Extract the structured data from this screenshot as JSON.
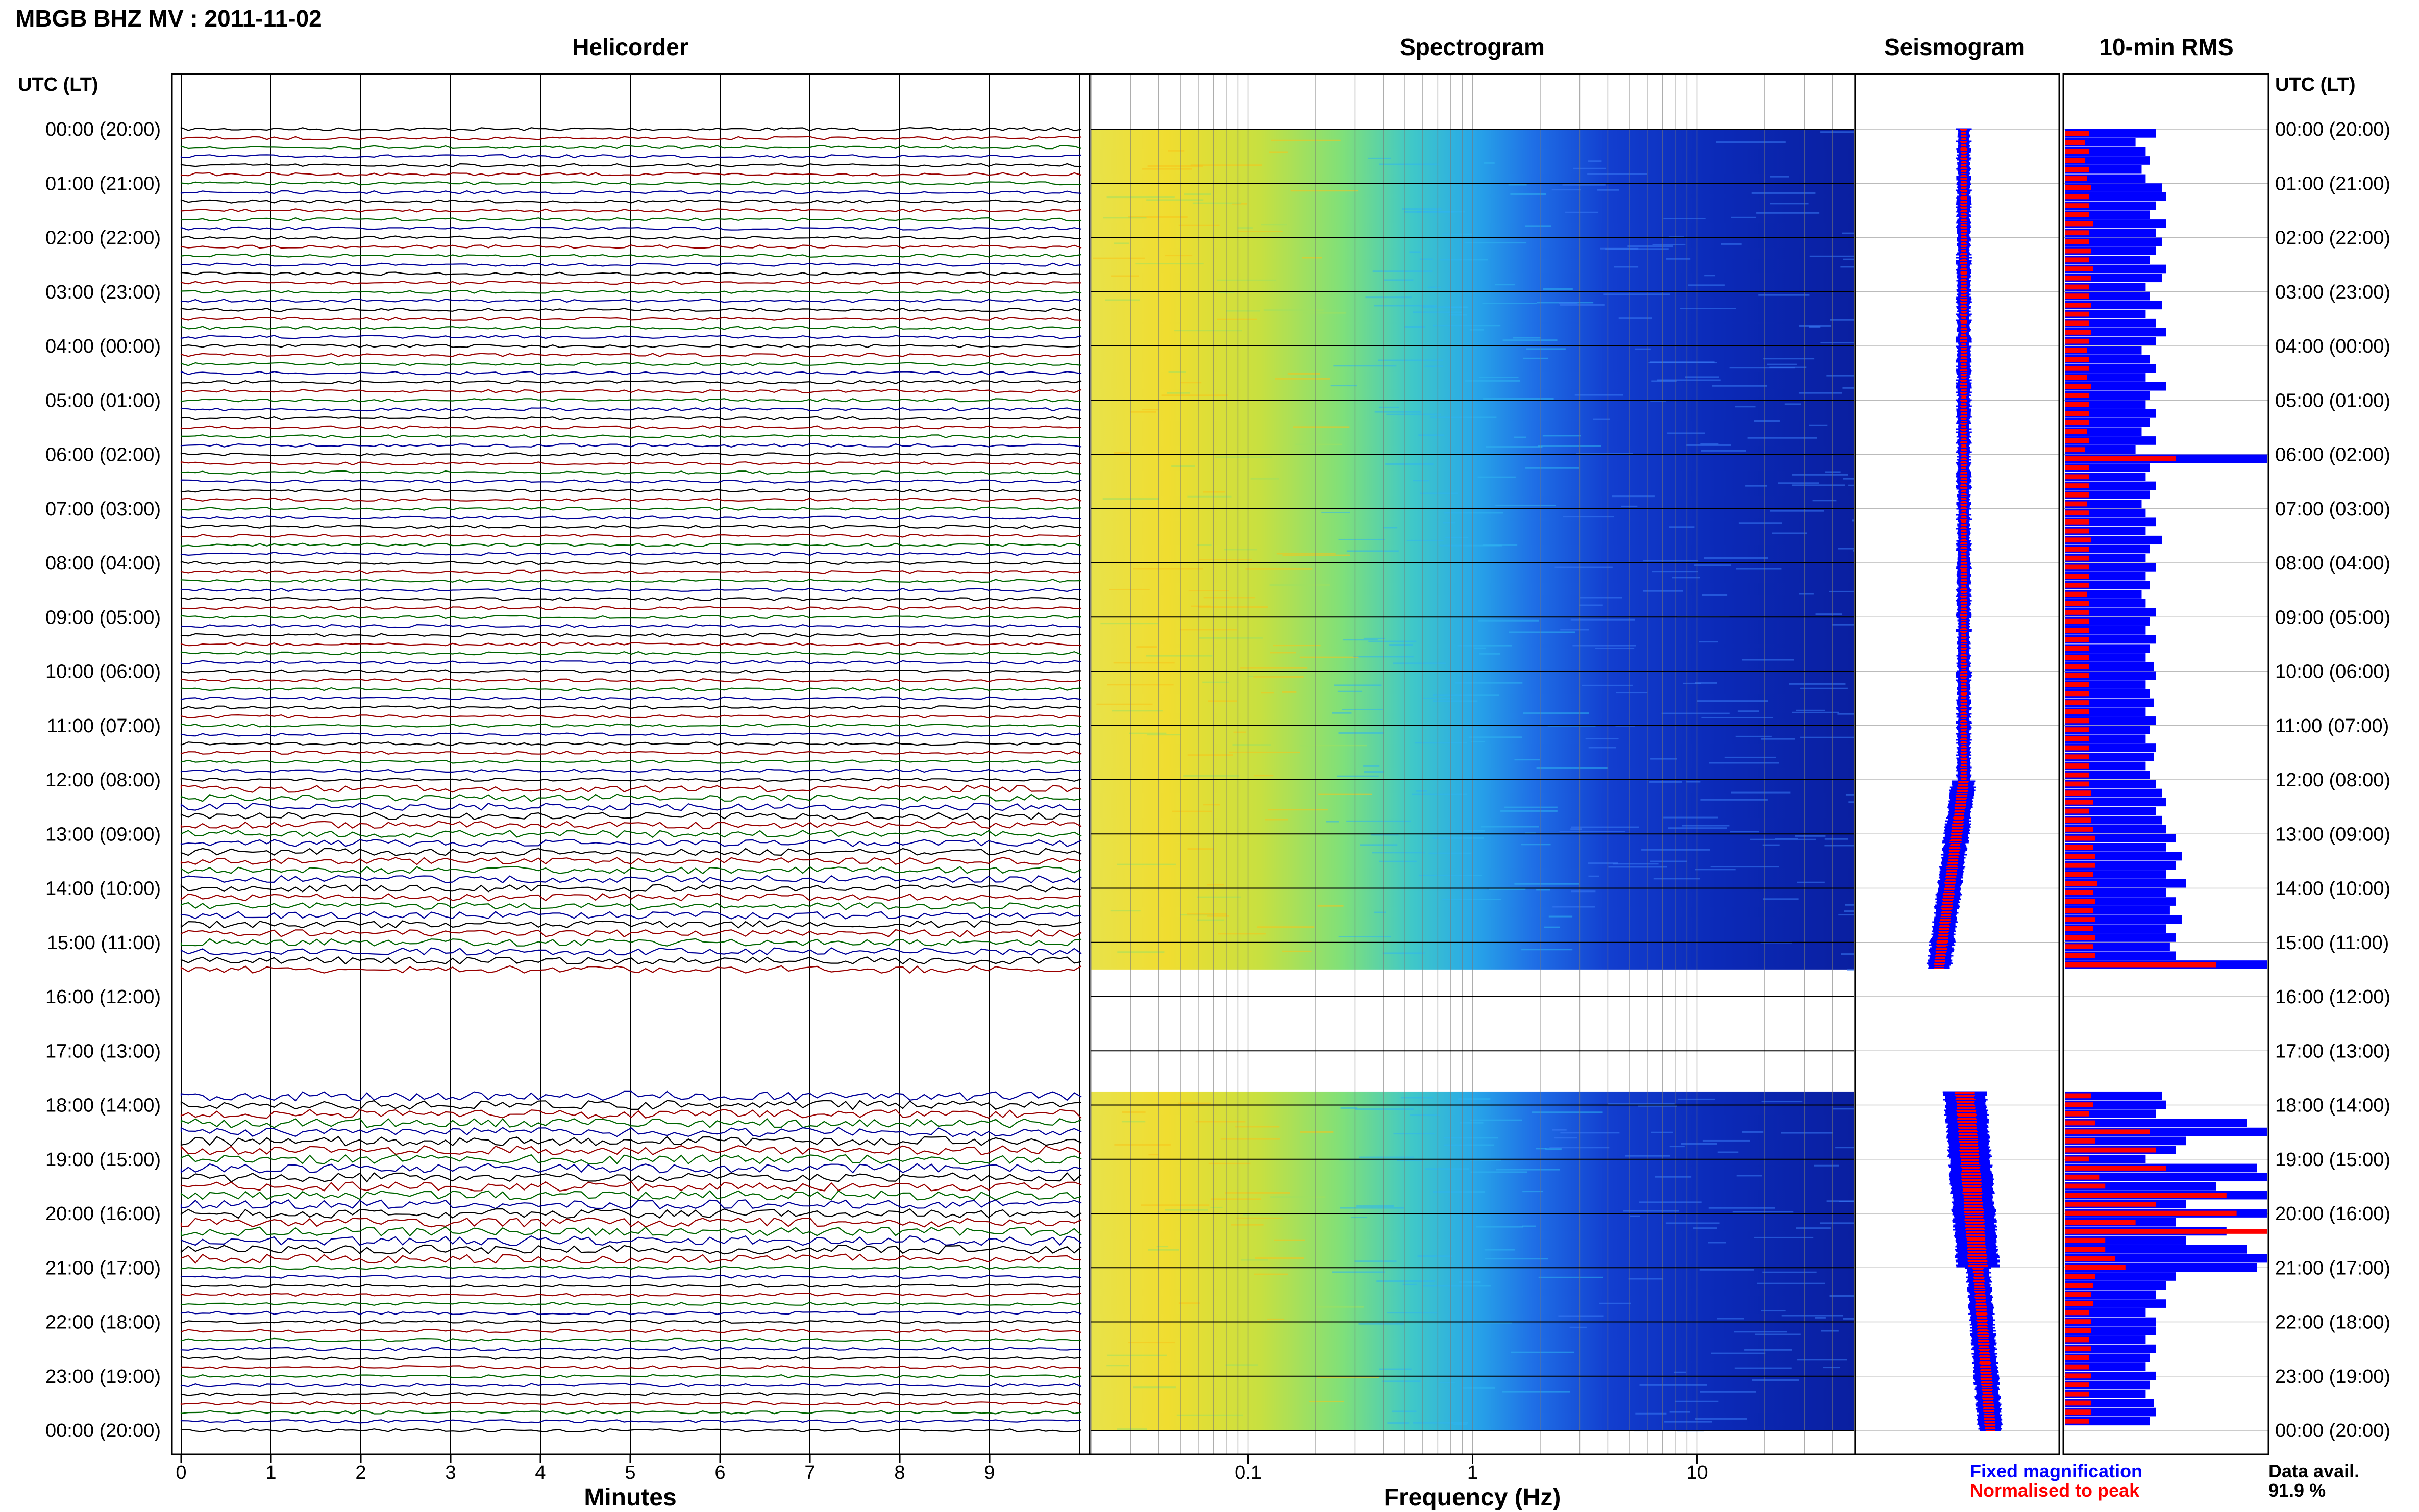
{
  "header": {
    "title": "MBGB BHZ MV : 2011-11-02",
    "utc_label_left": "UTC (LT)",
    "utc_label_right": "UTC (LT)"
  },
  "panels": {
    "helicorder": "Helicorder",
    "spectrogram": "Spectrogram",
    "seismogram": "Seismogram",
    "rms": "10-min RMS"
  },
  "time_labels": [
    "00:00 (20:00)",
    "01:00 (21:00)",
    "02:00 (22:00)",
    "03:00 (23:00)",
    "04:00 (00:00)",
    "05:00 (01:00)",
    "06:00 (02:00)",
    "07:00 (03:00)",
    "08:00 (04:00)",
    "09:00 (05:00)",
    "10:00 (06:00)",
    "11:00 (07:00)",
    "12:00 (08:00)",
    "13:00 (09:00)",
    "14:00 (10:00)",
    "15:00 (11:00)",
    "16:00 (12:00)",
    "17:00 (13:00)",
    "18:00 (14:00)",
    "19:00 (15:00)",
    "20:00 (16:00)",
    "21:00 (17:00)",
    "22:00 (18:00)",
    "23:00 (19:00)",
    "00:00 (20:00)"
  ],
  "legend": {
    "fixed": "Fixed magnification",
    "normalised": "Normalised to peak",
    "avail_label": "Data avail.",
    "avail_value": "91.9 %",
    "fixed_color": "#0000ff",
    "normalised_color": "#ff0000"
  },
  "chart_data": {
    "type": "helicorder-spectrogram-rms",
    "data_gap_utc_hours": [
      15.5,
      17.75
    ],
    "helicorder": {
      "xlabel": "Minutes",
      "xticks": [
        "0",
        "1",
        "2",
        "3",
        "4",
        "5",
        "6",
        "7",
        "8",
        "9"
      ],
      "xlim": [
        0,
        10
      ],
      "trace_colors": [
        "#000000",
        "#990000",
        "#006600",
        "#000099"
      ]
    },
    "spectrogram": {
      "xlabel": "Frequency (Hz)",
      "xscale": "log",
      "xticks": [
        "0.1",
        "1",
        "10"
      ],
      "xlim": [
        0.02,
        50
      ]
    },
    "rms": {
      "interval_minutes": 10,
      "fixed_magnification_relative": [
        0.45,
        0.35,
        0.4,
        0.42,
        0.38,
        0.4,
        0.48,
        0.5,
        0.45,
        0.42,
        0.5,
        0.45,
        0.48,
        0.45,
        0.42,
        0.5,
        0.48,
        0.4,
        0.42,
        0.48,
        0.4,
        0.45,
        0.5,
        0.45,
        0.38,
        0.42,
        0.45,
        0.4,
        0.5,
        0.42,
        0.4,
        0.45,
        0.42,
        0.38,
        0.45,
        0.35,
        1.0,
        0.42,
        0.4,
        0.45,
        0.42,
        0.38,
        0.4,
        0.45,
        0.4,
        0.48,
        0.42,
        0.4,
        0.45,
        0.4,
        0.42,
        0.38,
        0.4,
        0.45,
        0.42,
        0.4,
        0.45,
        0.42,
        0.4,
        0.44,
        0.45,
        0.4,
        0.42,
        0.44,
        0.4,
        0.45,
        0.42,
        0.4,
        0.45,
        0.44,
        0.4,
        0.42,
        0.45,
        0.48,
        0.5,
        0.45,
        0.48,
        0.5,
        0.55,
        0.5,
        0.58,
        0.55,
        0.5,
        0.6,
        0.5,
        0.55,
        0.52,
        0.58,
        0.5,
        0.55,
        0.52,
        0.55,
        1.0,
        0.48,
        0.5,
        0.45,
        0.9,
        1.0,
        0.6,
        0.55,
        0.4,
        0.95,
        1.0,
        0.75,
        1.0,
        0.6,
        1.0,
        0.55,
        0.8,
        0.6,
        0.9,
        1.0,
        0.95,
        0.55,
        0.5,
        0.45,
        0.5,
        0.4,
        0.45,
        0.45,
        0.4,
        0.45,
        0.42,
        0.4,
        0.45,
        0.42,
        0.4,
        0.44,
        0.45,
        0.42,
        0.4,
        0.42
      ],
      "normalised_relative": [
        0.12,
        0.1,
        0.12,
        0.1,
        0.12,
        0.11,
        0.13,
        0.12,
        0.12,
        0.12,
        0.14,
        0.12,
        0.12,
        0.13,
        0.12,
        0.14,
        0.13,
        0.12,
        0.12,
        0.13,
        0.12,
        0.12,
        0.13,
        0.12,
        0.11,
        0.12,
        0.12,
        0.11,
        0.13,
        0.12,
        0.12,
        0.12,
        0.12,
        0.11,
        0.12,
        0.1,
        0.55,
        0.12,
        0.12,
        0.12,
        0.12,
        0.11,
        0.12,
        0.12,
        0.12,
        0.13,
        0.12,
        0.12,
        0.12,
        0.12,
        0.12,
        0.11,
        0.12,
        0.12,
        0.12,
        0.12,
        0.12,
        0.12,
        0.12,
        0.12,
        0.12,
        0.12,
        0.12,
        0.12,
        0.12,
        0.12,
        0.12,
        0.12,
        0.12,
        0.12,
        0.12,
        0.12,
        0.12,
        0.13,
        0.14,
        0.12,
        0.13,
        0.14,
        0.15,
        0.14,
        0.15,
        0.15,
        0.14,
        0.16,
        0.14,
        0.15,
        0.14,
        0.15,
        0.14,
        0.15,
        0.14,
        0.15,
        0.75,
        0.13,
        0.14,
        0.12,
        0.15,
        0.42,
        0.15,
        0.45,
        0.12,
        0.5,
        0.17,
        0.2,
        0.8,
        0.45,
        0.85,
        0.35,
        1.0,
        0.2,
        0.2,
        0.25,
        0.3,
        0.15,
        0.14,
        0.13,
        0.14,
        0.12,
        0.13,
        0.13,
        0.12,
        0.13,
        0.12,
        0.12,
        0.13,
        0.12,
        0.12,
        0.13,
        0.13,
        0.12,
        0.12,
        0.12
      ]
    }
  }
}
